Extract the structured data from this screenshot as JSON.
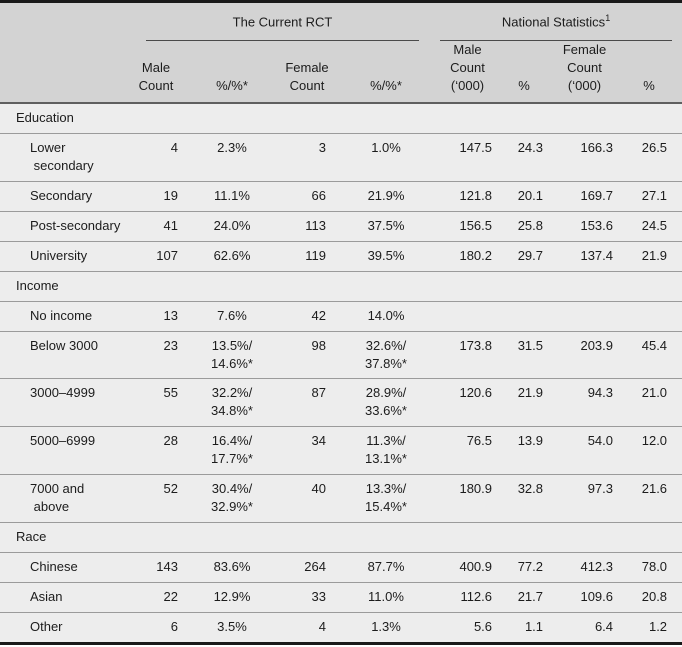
{
  "table": {
    "group_headers": [
      {
        "label": "The Current RCT",
        "sup": ""
      },
      {
        "label": "National Statistics",
        "sup": "1"
      }
    ],
    "columns": [
      "",
      "Male\nCount",
      "%/%*",
      "Female\nCount",
      "%/%*",
      "Male\nCount\n(‘000)",
      "%",
      "Female\nCount\n(‘000)",
      "%"
    ],
    "sections": [
      {
        "title": "Education",
        "rows": [
          {
            "label": "Lower\n secondary",
            "cells": [
              "4",
              "2.3%",
              "3",
              "1.0%",
              "147.5",
              "24.3",
              "166.3",
              "26.5"
            ]
          },
          {
            "label": "Secondary",
            "cells": [
              "19",
              "11.1%",
              "66",
              "21.9%",
              "121.8",
              "20.1",
              "169.7",
              "27.1"
            ]
          },
          {
            "label": "Post-secondary",
            "cells": [
              "41",
              "24.0%",
              "113",
              "37.5%",
              "156.5",
              "25.8",
              "153.6",
              "24.5"
            ]
          },
          {
            "label": "University",
            "cells": [
              "107",
              "62.6%",
              "119",
              "39.5%",
              "180.2",
              "29.7",
              "137.4",
              "21.9"
            ]
          }
        ]
      },
      {
        "title": "Income",
        "rows": [
          {
            "label": "No income",
            "cells": [
              "13",
              "7.6%",
              "42",
              "14.0%",
              "",
              "",
              "",
              ""
            ]
          },
          {
            "label": "Below 3000",
            "cells": [
              "23",
              "13.5%/\n14.6%*",
              "98",
              "32.6%/\n37.8%*",
              "173.8",
              "31.5",
              "203.9",
              "45.4"
            ]
          },
          {
            "label": "3000–4999",
            "cells": [
              "55",
              "32.2%/\n34.8%*",
              "87",
              "28.9%/\n33.6%*",
              "120.6",
              "21.9",
              "94.3",
              "21.0"
            ]
          },
          {
            "label": "5000–6999",
            "cells": [
              "28",
              "16.4%/\n17.7%*",
              "34",
              "11.3%/\n13.1%*",
              "76.5",
              "13.9",
              "54.0",
              "12.0"
            ]
          },
          {
            "label": "7000 and\n above",
            "cells": [
              "52",
              "30.4%/\n32.9%*",
              "40",
              "13.3%/\n15.4%*",
              "180.9",
              "32.8",
              "97.3",
              "21.6"
            ]
          }
        ]
      },
      {
        "title": "Race",
        "rows": [
          {
            "label": "Chinese",
            "cells": [
              "143",
              "83.6%",
              "264",
              "87.7%",
              "400.9",
              "77.2",
              "412.3",
              "78.0"
            ]
          },
          {
            "label": "Asian",
            "cells": [
              "22",
              "12.9%",
              "33",
              "11.0%",
              "112.6",
              "21.7",
              "109.6",
              "20.8"
            ]
          },
          {
            "label": "Other",
            "cells": [
              "6",
              "3.5%",
              "4",
              "1.3%",
              "5.6",
              "1.1",
              "6.4",
              "1.2"
            ]
          }
        ]
      }
    ],
    "colors": {
      "header_bg": "#d3d3d3",
      "body_bg": "#ededed",
      "border_dark": "#191919",
      "row_separator": "#9b9b9b"
    }
  }
}
